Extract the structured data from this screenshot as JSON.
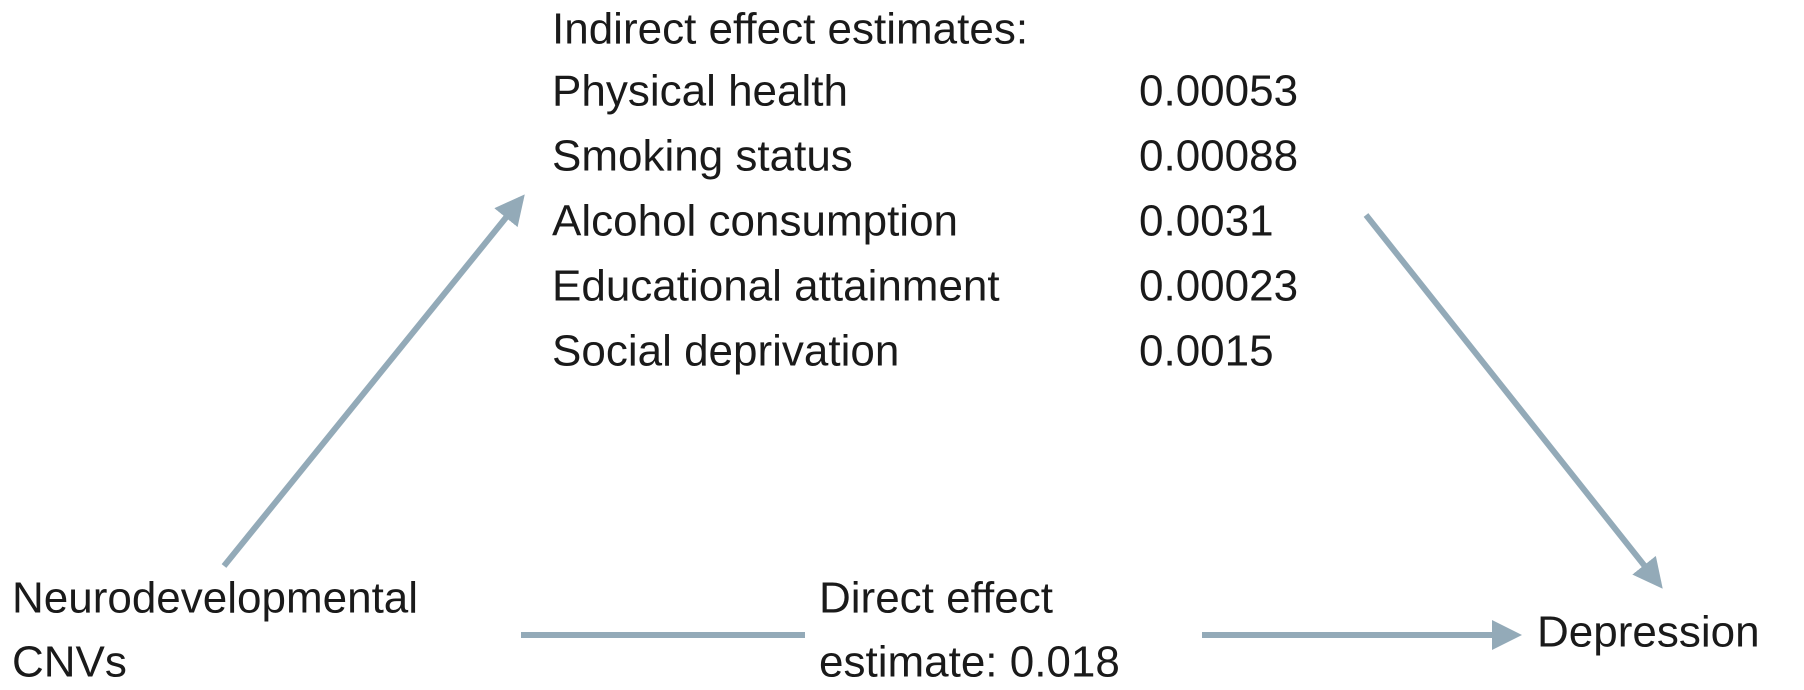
{
  "title": "Indirect effect estimates:",
  "mediators": [
    {
      "label": "Physical health",
      "value": "0.00053"
    },
    {
      "label": "Smoking status",
      "value": "0.00088"
    },
    {
      "label": "Alcohol consumption",
      "value": "0.0031"
    },
    {
      "label": "Educational attainment",
      "value": "0.00023"
    },
    {
      "label": "Social deprivation",
      "value": "0.0015"
    }
  ],
  "exposure": [
    "Neurodevelopmental",
    "CNVs"
  ],
  "direct": [
    "Direct effect",
    "estimate: 0.018"
  ],
  "outcome": "Depression"
}
